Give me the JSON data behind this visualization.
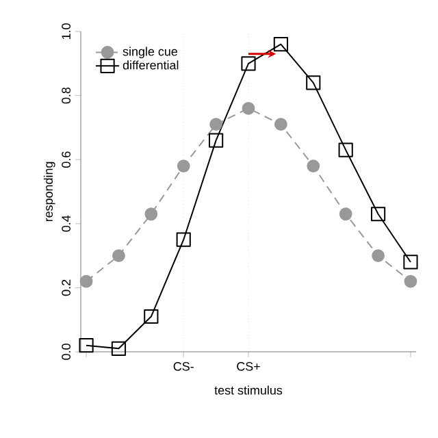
{
  "chart_data": {
    "type": "line",
    "xlabel": "test stimulus",
    "ylabel": "responding",
    "categories": [
      null,
      null,
      null,
      "CS-",
      null,
      "CS+",
      null,
      null,
      null,
      null,
      null
    ],
    "series": [
      {
        "name": "single cue",
        "color": "#999999",
        "marker": "circle",
        "line_style": "dashed",
        "values": [
          0.22,
          0.3,
          0.43,
          0.58,
          0.71,
          0.76,
          0.71,
          0.58,
          0.43,
          0.3,
          0.22
        ]
      },
      {
        "name": "differential",
        "color": "#000000",
        "marker": "square",
        "line_style": "solid",
        "values": [
          0.02,
          0.01,
          0.11,
          0.35,
          0.66,
          0.9,
          0.96,
          0.84,
          0.63,
          0.43,
          0.28
        ]
      }
    ],
    "ylim": [
      0,
      1.0
    ],
    "yticks": [
      {
        "value": 0,
        "label": "0.0"
      },
      {
        "value": 0.2,
        "label": "0.2"
      },
      {
        "value": 0.4,
        "label": "0.4"
      },
      {
        "value": 0.6,
        "label": "0.6"
      },
      {
        "value": 0.8,
        "label": "0.8"
      },
      {
        "value": 1.0,
        "label": "1.0"
      }
    ],
    "ref_lines": [
      {
        "axis": "x",
        "value": "CS-",
        "color": "#cccccc",
        "line_style": "dotted"
      },
      {
        "axis": "x",
        "value": "CS+",
        "color": "#cccccc",
        "line_style": "dotted"
      }
    ],
    "legend": "top left"
  }
}
